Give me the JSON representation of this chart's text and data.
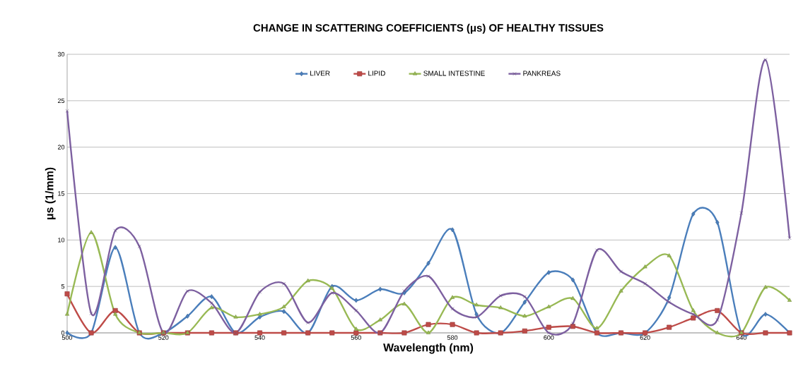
{
  "chart_data": {
    "type": "line",
    "title": "CHANGE IN SCATTERING COEFFICIENTS (μs) OF HEALTHY TISSUES",
    "xlabel": "Wavelength (nm)",
    "ylabel": "μs (1/mm)",
    "x": [
      500,
      505,
      510,
      515,
      520,
      525,
      530,
      535,
      540,
      545,
      550,
      555,
      560,
      565,
      570,
      575,
      580,
      585,
      590,
      595,
      600,
      605,
      610,
      615,
      620,
      625,
      630,
      635,
      640,
      645,
      650
    ],
    "xlim": [
      500,
      650
    ],
    "xticks": [
      500,
      520,
      540,
      560,
      580,
      600,
      620,
      640
    ],
    "ylim": [
      0,
      30
    ],
    "yticks": [
      0,
      5,
      10,
      15,
      20,
      25,
      30
    ],
    "grid": "y",
    "legend": "top",
    "line_style": "solid",
    "series": [
      {
        "name": "LIVER",
        "color": "#4a7ebb",
        "marker": "diamond",
        "values": [
          0,
          0,
          9.2,
          0,
          0,
          1.8,
          3.9,
          0,
          1.7,
          2.3,
          0,
          5.0,
          3.5,
          4.7,
          4.3,
          7.5,
          11.1,
          2.0,
          0,
          3.3,
          6.5,
          5.7,
          0,
          0,
          0,
          3.8,
          12.8,
          11.9,
          0,
          2.0,
          0
        ]
      },
      {
        "name": "LIPID",
        "color": "#be4b48",
        "marker": "square",
        "values": [
          4.2,
          0,
          2.4,
          0,
          0,
          0,
          0,
          0,
          0,
          0,
          0,
          0,
          0,
          0,
          0,
          0.9,
          0.9,
          0,
          0,
          0.2,
          0.6,
          0.7,
          0,
          0,
          0,
          0.6,
          1.6,
          2.4,
          0,
          0,
          0
        ]
      },
      {
        "name": "SMALL INTESTINE",
        "color": "#98b954",
        "marker": "triangle",
        "values": [
          2.0,
          10.8,
          2.0,
          0,
          0,
          0,
          2.7,
          1.7,
          2.0,
          2.8,
          5.6,
          4.8,
          0.4,
          1.4,
          3.1,
          0,
          3.8,
          3.0,
          2.7,
          1.8,
          2.8,
          3.7,
          0.5,
          4.5,
          7.1,
          8.3,
          2.4,
          0,
          0,
          4.9,
          3.5
        ]
      },
      {
        "name": "PANKREAS",
        "color": "#7d60a0",
        "marker": "cross",
        "values": [
          23.9,
          2.1,
          11.0,
          9.3,
          0,
          4.5,
          3.2,
          0,
          4.4,
          5.3,
          1.1,
          4.3,
          2.4,
          0,
          4.5,
          6.1,
          2.6,
          1.7,
          4.0,
          3.9,
          0,
          1.0,
          8.9,
          6.6,
          5.3,
          3.3,
          2.0,
          1.4,
          12.9,
          29.4,
          10.2
        ]
      }
    ]
  }
}
